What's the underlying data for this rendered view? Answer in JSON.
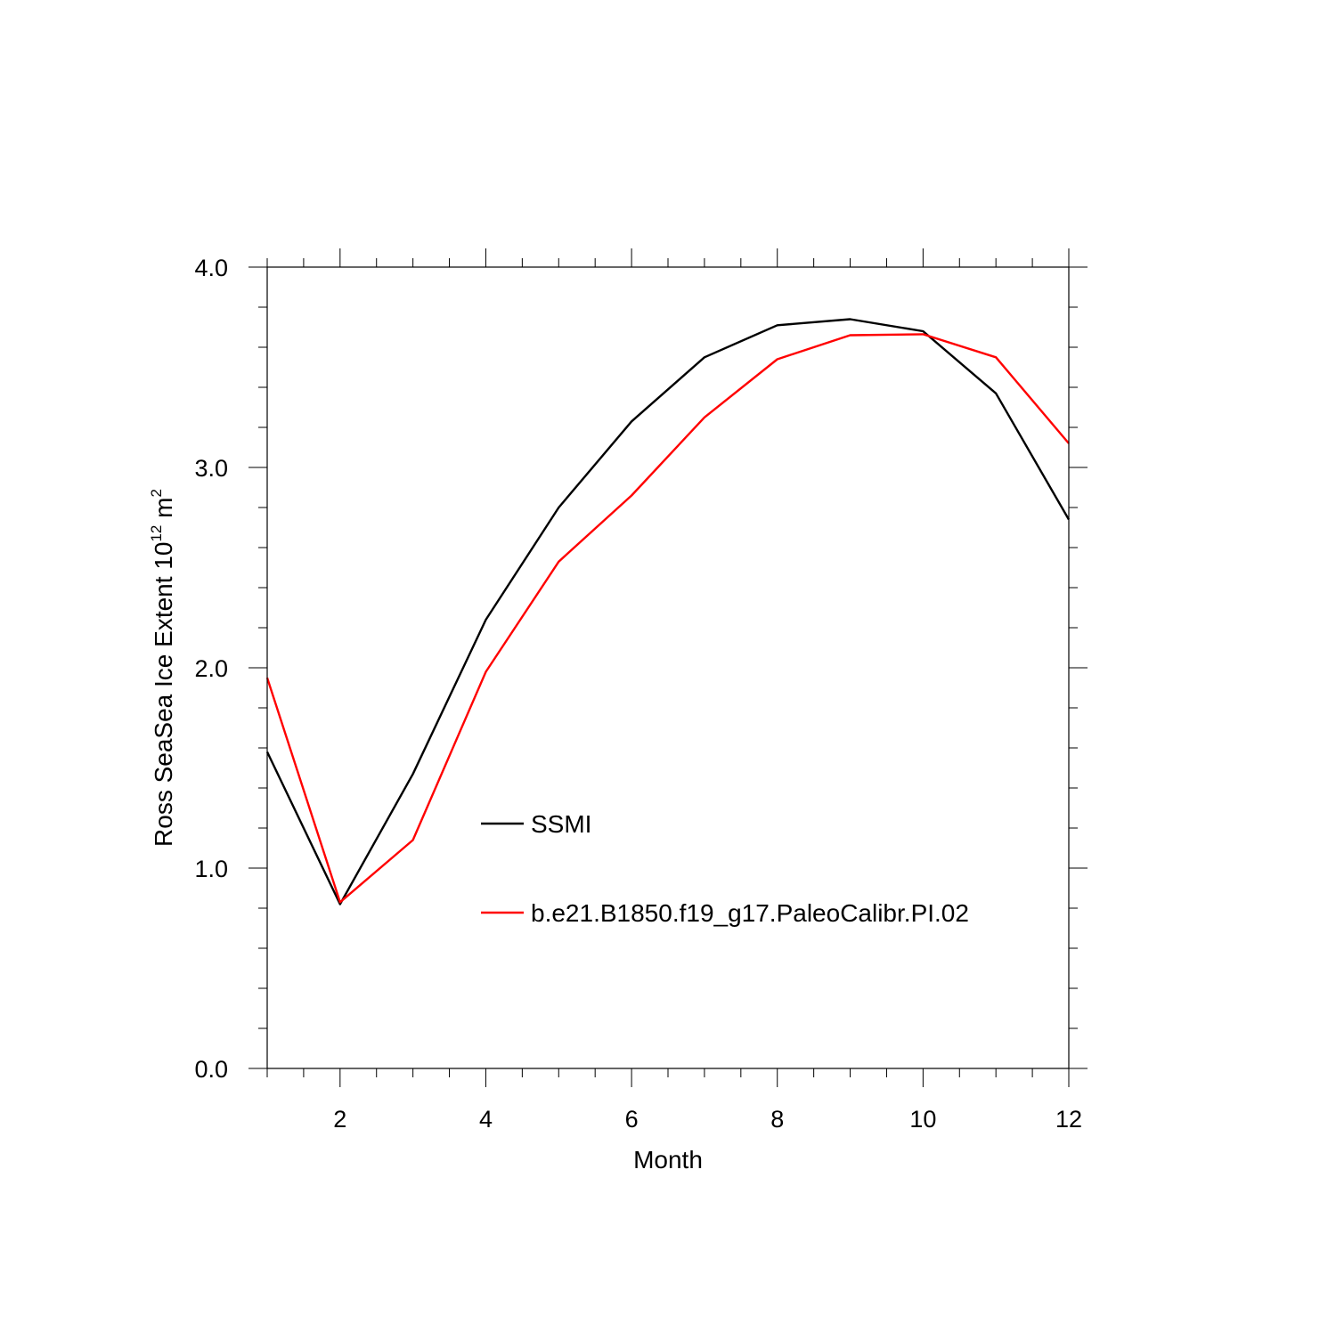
{
  "chart_data": {
    "type": "line",
    "title": "",
    "xlabel": "Month",
    "ylabel_main": "Ross SeaSea Ice Extent 10",
    "ylabel_exp1": "12",
    "ylabel_mid": " m",
    "ylabel_exp2": "2",
    "xlim": [
      1,
      12
    ],
    "ylim": [
      0,
      4
    ],
    "x_ticks": [
      2,
      4,
      6,
      8,
      10,
      12
    ],
    "x_tick_labels": [
      "2",
      "4",
      "6",
      "8",
      "10",
      "12"
    ],
    "y_ticks": [
      0,
      1,
      2,
      3,
      4
    ],
    "y_tick_labels": [
      "0.0",
      "1.0",
      "2.0",
      "3.0",
      "4.0"
    ],
    "grid": false,
    "legend_position": "center",
    "x": [
      1,
      2,
      3,
      4,
      5,
      6,
      7,
      8,
      9,
      10,
      11,
      12
    ],
    "series": [
      {
        "name": "SSMI",
        "color": "#000000",
        "values": [
          1.58,
          0.82,
          1.47,
          2.24,
          2.8,
          3.23,
          3.55,
          3.71,
          3.74,
          3.68,
          3.37,
          2.74
        ]
      },
      {
        "name": "b.e21.B1850.f19_g17.PaleoCalibr.PI.02",
        "color": "#ff0000",
        "values": [
          1.95,
          0.83,
          1.14,
          1.98,
          2.53,
          2.86,
          3.25,
          3.54,
          3.66,
          3.665,
          3.55,
          3.12
        ]
      }
    ]
  }
}
